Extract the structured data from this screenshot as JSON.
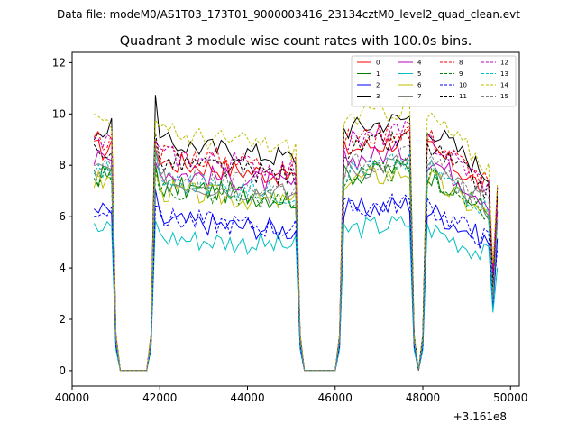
{
  "suptitle": "Data file: modeM0/AS1T03_173T01_9000003416_23134cztM0_level2_quad_clean.evt",
  "chart_data": {
    "type": "line",
    "title": "Quadrant 3 module wise count rates with 100.0s bins.",
    "xlabel": "",
    "ylabel": "",
    "x_offset_label": "+3.161e8",
    "xlim": [
      40000,
      50200
    ],
    "ylim": [
      -0.6,
      12.4
    ],
    "xticks": [
      40000,
      42000,
      44000,
      46000,
      48000,
      50000
    ],
    "xtick_labels": [
      "40000",
      "42000",
      "44000",
      "46000",
      "48000",
      "50000"
    ],
    "yticks": [
      0,
      2,
      4,
      6,
      8,
      10,
      12
    ],
    "ytick_labels": [
      "0",
      "2",
      "4",
      "6",
      "8",
      "10",
      "12"
    ],
    "legend_location": "top-right",
    "segments": [
      {
        "start": 40500,
        "end": 40900,
        "level": 1.0
      },
      {
        "start": 41850,
        "end": 45100,
        "level": 1.0
      },
      {
        "start": 46200,
        "end": 47750,
        "level": 1.0
      },
      {
        "start": 48100,
        "end": 49760,
        "level": 1.0
      }
    ],
    "series": [
      {
        "name": "0",
        "color": "#ff0000",
        "style": "solid",
        "level": 8.6
      },
      {
        "name": "1",
        "color": "#008000",
        "style": "solid",
        "level": 7.6
      },
      {
        "name": "2",
        "color": "#0000ff",
        "style": "solid",
        "level": 6.2
      },
      {
        "name": "3",
        "color": "#000000",
        "style": "solid",
        "level": 9.4
      },
      {
        "name": "4",
        "color": "#bf00bf",
        "style": "solid",
        "level": 8.2
      },
      {
        "name": "5",
        "color": "#00bfbf",
        "style": "solid",
        "level": 5.5
      },
      {
        "name": "6",
        "color": "#bfbf00",
        "style": "solid",
        "level": 7.4
      },
      {
        "name": "7",
        "color": "#808080",
        "style": "solid",
        "level": 7.8
      },
      {
        "name": "8",
        "color": "#ff0000",
        "style": "dashed",
        "level": 9.0
      },
      {
        "name": "9",
        "color": "#008000",
        "style": "dashed",
        "level": 7.5
      },
      {
        "name": "10",
        "color": "#0000ff",
        "style": "dashed",
        "level": 6.3
      },
      {
        "name": "11",
        "color": "#000000",
        "style": "dashed",
        "level": 8.6
      },
      {
        "name": "12",
        "color": "#bf00bf",
        "style": "dashed",
        "level": 8.9
      },
      {
        "name": "13",
        "color": "#00bfbf",
        "style": "dashed",
        "level": 7.8
      },
      {
        "name": "14",
        "color": "#bfbf00",
        "style": "dashed",
        "level": 9.8
      },
      {
        "name": "15",
        "color": "#808080",
        "style": "dashed",
        "level": 8.0
      }
    ]
  }
}
